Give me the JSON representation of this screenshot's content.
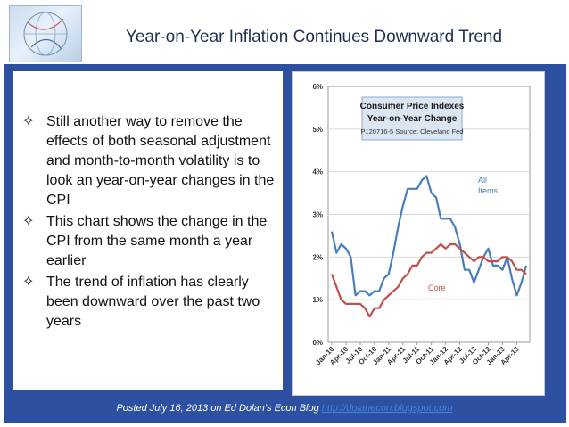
{
  "slide": {
    "title": "Year-on-Year Inflation Continues Downward Trend",
    "bullets": [
      "Still another way to remove the effects of both seasonal adjustment and month-to-month volatility is to look an year-on-year changes in the CPI",
      "This chart shows the change in the CPI from the same month a year earlier",
      "The trend of inflation has clearly been downward over the past two years"
    ],
    "footer_text": "Posted July 16, 2013 on Ed Dolan’s Econ Blog ",
    "footer_link": "http://dolanecon.blogspot.com",
    "bullet_icon": "four-point-star-outline",
    "colors": {
      "panel": "#2e50a0",
      "title": "#1f2f52",
      "link": "#3b86e6"
    }
  },
  "chart_data": {
    "type": "line",
    "title": "Consumer Price Indexes",
    "subtitle": "Year-on-Year Change",
    "source_note": "P120716-5 Source: Cleveland Fed",
    "x_tick_labels": [
      "Jan-10",
      "Apr-10",
      "Jul-10",
      "Oct-10",
      "Jan-11",
      "Apr-11",
      "Jul-11",
      "Oct-11",
      "Jan-12",
      "Apr-12",
      "Jul-12",
      "Oct-12",
      "Jan-13",
      "Apr-13"
    ],
    "y_tick_labels": [
      "0%",
      "1%",
      "2%",
      "3%",
      "4%",
      "5%",
      "6%"
    ],
    "ylim": [
      0,
      6
    ],
    "grid": true,
    "series": [
      {
        "name": "All Items",
        "color": "#4a7ebb",
        "values": [
          2.6,
          2.1,
          2.3,
          2.2,
          2.0,
          1.1,
          1.2,
          1.2,
          1.1,
          1.2,
          1.2,
          1.5,
          1.6,
          2.1,
          2.7,
          3.2,
          3.6,
          3.6,
          3.6,
          3.8,
          3.9,
          3.5,
          3.4,
          2.9,
          2.9,
          2.9,
          2.7,
          2.3,
          1.7,
          1.7,
          1.4,
          1.7,
          2.0,
          2.2,
          1.8,
          1.8,
          1.7,
          2.0,
          1.5,
          1.1,
          1.4,
          1.8
        ]
      },
      {
        "name": "Core",
        "color": "#c0504d",
        "values": [
          1.6,
          1.3,
          1.0,
          0.9,
          0.9,
          0.9,
          0.9,
          0.8,
          0.6,
          0.8,
          0.8,
          1.0,
          1.1,
          1.2,
          1.3,
          1.5,
          1.6,
          1.8,
          1.8,
          2.0,
          2.1,
          2.1,
          2.2,
          2.3,
          2.2,
          2.3,
          2.3,
          2.2,
          2.1,
          2.0,
          1.9,
          2.0,
          2.0,
          1.9,
          1.9,
          1.9,
          2.0,
          2.0,
          1.9,
          1.7,
          1.7,
          1.6
        ]
      }
    ]
  }
}
